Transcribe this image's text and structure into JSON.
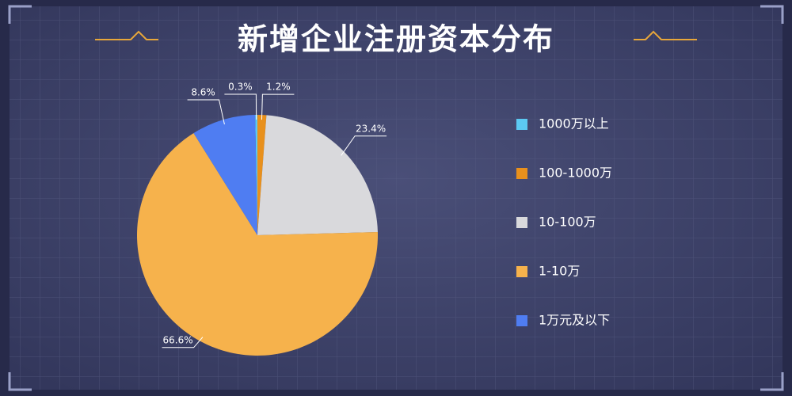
{
  "chart_data": {
    "type": "pie",
    "title": "新增企业注册资本分布",
    "series": [
      {
        "name": "",
        "values": [
          0.3,
          1.2,
          23.4,
          66.6,
          8.6
        ],
        "value_labels": [
          "0.3%",
          "1.2%",
          "23.4%",
          "66.6%",
          "8.6%"
        ]
      }
    ],
    "categories": [
      "1000万以上",
      "100-1000万",
      "10-100万",
      "1-10万",
      "1万元及以下"
    ],
    "colors": [
      "#5cc9f2",
      "#e8901c",
      "#d9d9dc",
      "#f6b24c",
      "#4f7df2"
    ],
    "legend": "right"
  }
}
